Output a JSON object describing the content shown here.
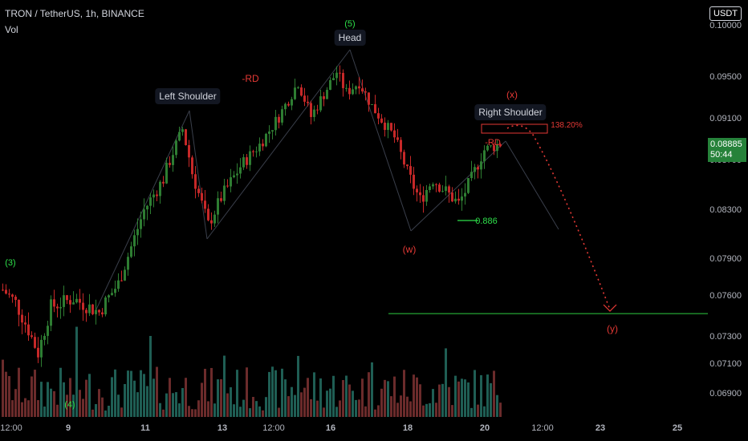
{
  "header": {
    "title": "TRON / TetherUS, 1h, BINANCE",
    "indicator": "Vol"
  },
  "currency_badge": "USDT",
  "last_price": {
    "value": "0.08885",
    "countdown": "50:44"
  },
  "colors": {
    "up": "#26a69a",
    "down": "#ef5350",
    "up_candle": "#2e7d32",
    "down_candle": "#c62828",
    "annotation_red": "#e53935",
    "annotation_green": "#2ee04a",
    "target_line": "#2ecc40"
  },
  "chart_data": {
    "type": "candlestick",
    "y_ticks": [
      "0.10000",
      "0.09500",
      "0.09100",
      "0.08700",
      "0.08300",
      "0.07900",
      "0.07600",
      "0.07300",
      "0.07100",
      "0.06900"
    ],
    "y_tick_values": [
      0.1,
      0.095,
      0.091,
      0.087,
      0.083,
      0.079,
      0.076,
      0.073,
      0.071,
      0.069
    ],
    "x_ticks": [
      "12:00",
      "9",
      "11",
      "13",
      "12:00",
      "16",
      "18",
      "20",
      "12:00",
      "23",
      "25"
    ],
    "price_path": [
      {
        "t": 0,
        "p": 0.0765
      },
      {
        "t": 4,
        "p": 0.0755
      },
      {
        "t": 8,
        "p": 0.0735
      },
      {
        "t": 11,
        "p": 0.0718
      },
      {
        "t": 15,
        "p": 0.0752
      },
      {
        "t": 22,
        "p": 0.0758
      },
      {
        "t": 30,
        "p": 0.0748
      },
      {
        "t": 36,
        "p": 0.077
      },
      {
        "t": 44,
        "p": 0.083
      },
      {
        "t": 50,
        "p": 0.0855
      },
      {
        "t": 56,
        "p": 0.09
      },
      {
        "t": 59,
        "p": 0.086
      },
      {
        "t": 64,
        "p": 0.0818
      },
      {
        "t": 68,
        "p": 0.084
      },
      {
        "t": 74,
        "p": 0.0865
      },
      {
        "t": 80,
        "p": 0.0885
      },
      {
        "t": 86,
        "p": 0.0912
      },
      {
        "t": 92,
        "p": 0.0945
      },
      {
        "t": 96,
        "p": 0.0912
      },
      {
        "t": 104,
        "p": 0.0955
      },
      {
        "t": 107,
        "p": 0.0935
      },
      {
        "t": 111,
        "p": 0.0945
      },
      {
        "t": 115,
        "p": 0.0922
      },
      {
        "t": 122,
        "p": 0.0892
      },
      {
        "t": 126,
        "p": 0.086
      },
      {
        "t": 130,
        "p": 0.0838
      },
      {
        "t": 134,
        "p": 0.0855
      },
      {
        "t": 138,
        "p": 0.0845
      },
      {
        "t": 142,
        "p": 0.0835
      },
      {
        "t": 146,
        "p": 0.0855
      },
      {
        "t": 150,
        "p": 0.088
      },
      {
        "t": 155,
        "p": 0.0886
      }
    ],
    "target_level": 0.0747,
    "annotations": {
      "left_shoulder": "Left Shoulder",
      "head": "Head",
      "right_shoulder": "Right Shoulder",
      "rd1": "-RD",
      "rd2": "-RD",
      "wave_x": "(x)",
      "wave_w": "(w)",
      "wave_y": "(y)",
      "wave_3": "(3)",
      "wave_4": "(4)",
      "wave_5": "(5)",
      "fib_886": "0.886",
      "fib_138": "138.20%"
    }
  }
}
